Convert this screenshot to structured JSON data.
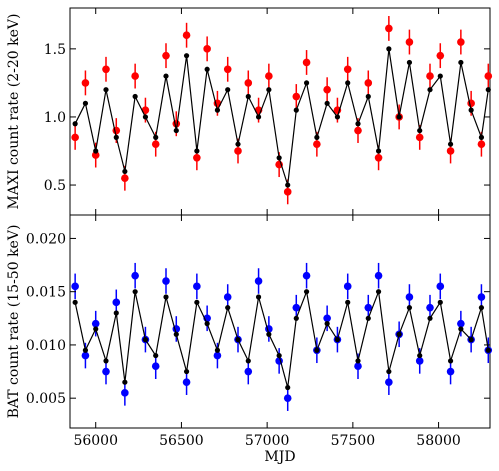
{
  "chart_data": [
    {
      "type": "scatter",
      "panel": "top",
      "ylabel": "MAXI count rate (2-20 keV)",
      "xlabel": "",
      "xlim": [
        55850,
        58300
      ],
      "ylim": [
        0.28,
        1.8
      ],
      "yticks": [
        0.5,
        1.0,
        1.5
      ],
      "ytick_labels": [
        "0.5",
        "1.0",
        "1.5"
      ],
      "colors": {
        "data": "#ff0000",
        "model": "#000000"
      },
      "series": [
        {
          "style": "points-with-errorbars",
          "x": [
            55880,
            55940,
            56000,
            56060,
            56120,
            56170,
            56230,
            56290,
            56350,
            56410,
            56470,
            56530,
            56590,
            56650,
            56710,
            56770,
            56830,
            56890,
            56950,
            57010,
            57070,
            57120,
            57170,
            57230,
            57290,
            57350,
            57410,
            57470,
            57530,
            57590,
            57650,
            57710,
            57770,
            57830,
            57890,
            57950,
            58010,
            58070,
            58130,
            58190,
            58250,
            58290
          ],
          "y": [
            0.85,
            1.25,
            0.72,
            1.35,
            0.9,
            0.55,
            1.3,
            1.05,
            0.8,
            1.45,
            0.95,
            1.6,
            0.7,
            1.5,
            1.1,
            1.35,
            0.75,
            1.25,
            1.05,
            1.3,
            0.65,
            0.45,
            1.15,
            1.4,
            0.8,
            1.2,
            1.05,
            1.35,
            0.9,
            1.25,
            0.7,
            1.65,
            1.0,
            1.55,
            0.85,
            1.3,
            1.45,
            0.75,
            1.55,
            1.1,
            0.8,
            1.3
          ]
        },
        {
          "style": "points",
          "x": [
            55880,
            55940,
            56000,
            56060,
            56120,
            56170,
            56230,
            56290,
            56350,
            56410,
            56470,
            56530,
            56590,
            56650,
            56710,
            56770,
            56830,
            56890,
            56950,
            57010,
            57070,
            57120,
            57170,
            57230,
            57290,
            57350,
            57410,
            57470,
            57530,
            57590,
            57650,
            57710,
            57770,
            57830,
            57890,
            57950,
            58010,
            58070,
            58130,
            58190,
            58250,
            58290
          ],
          "y": [
            0.95,
            1.1,
            0.75,
            1.2,
            0.85,
            0.6,
            1.15,
            1.0,
            0.85,
            1.3,
            0.9,
            1.45,
            0.75,
            1.35,
            1.05,
            1.2,
            0.8,
            1.15,
            1.0,
            1.2,
            0.7,
            0.5,
            1.05,
            1.25,
            0.85,
            1.1,
            1.0,
            1.25,
            0.95,
            1.15,
            0.75,
            1.5,
            1.0,
            1.4,
            0.9,
            1.2,
            1.3,
            0.8,
            1.4,
            1.05,
            0.85,
            1.2
          ]
        }
      ]
    },
    {
      "type": "scatter",
      "panel": "bottom",
      "ylabel": "BAT count rate (15-50 keV)",
      "xlabel": "MJD",
      "xlim": [
        55850,
        58300
      ],
      "ylim": [
        0.0022,
        0.0222
      ],
      "yticks": [
        0.005,
        0.01,
        0.015,
        0.02
      ],
      "ytick_labels": [
        "0.005",
        "0.010",
        "0.015",
        "0.020"
      ],
      "xticks": [
        56000,
        56500,
        57000,
        57500,
        58000
      ],
      "xtick_labels": [
        "56000",
        "56500",
        "57000",
        "57500",
        "58000"
      ],
      "colors": {
        "data": "#0000ff",
        "model": "#000000"
      },
      "series": [
        {
          "style": "points-with-errorbars",
          "x": [
            55880,
            55940,
            56000,
            56060,
            56120,
            56170,
            56230,
            56290,
            56350,
            56410,
            56470,
            56530,
            56590,
            56650,
            56710,
            56770,
            56830,
            56890,
            56950,
            57010,
            57070,
            57120,
            57170,
            57230,
            57290,
            57350,
            57410,
            57470,
            57530,
            57590,
            57650,
            57710,
            57770,
            57830,
            57890,
            57950,
            58010,
            58070,
            58130,
            58190,
            58250,
            58290
          ],
          "y": [
            0.0155,
            0.009,
            0.012,
            0.0075,
            0.014,
            0.0055,
            0.0165,
            0.0105,
            0.008,
            0.016,
            0.0115,
            0.0065,
            0.0155,
            0.0125,
            0.009,
            0.0145,
            0.0105,
            0.0075,
            0.016,
            0.0115,
            0.0085,
            0.005,
            0.0135,
            0.0165,
            0.0095,
            0.0125,
            0.0105,
            0.0155,
            0.008,
            0.0135,
            0.0165,
            0.0065,
            0.011,
            0.0145,
            0.0085,
            0.0135,
            0.0155,
            0.0075,
            0.012,
            0.0105,
            0.0145,
            0.0095
          ]
        },
        {
          "style": "points",
          "x": [
            55880,
            55940,
            56000,
            56060,
            56120,
            56170,
            56230,
            56290,
            56350,
            56410,
            56470,
            56530,
            56590,
            56650,
            56710,
            56770,
            56830,
            56890,
            56950,
            57010,
            57070,
            57120,
            57170,
            57230,
            57290,
            57350,
            57410,
            57470,
            57530,
            57590,
            57650,
            57710,
            57770,
            57830,
            57890,
            57950,
            58010,
            58070,
            58130,
            58190,
            58250,
            58290
          ],
          "y": [
            0.014,
            0.0095,
            0.0115,
            0.0085,
            0.013,
            0.0065,
            0.015,
            0.0105,
            0.009,
            0.0145,
            0.011,
            0.0075,
            0.014,
            0.012,
            0.0095,
            0.0135,
            0.0105,
            0.0085,
            0.0145,
            0.011,
            0.009,
            0.006,
            0.0125,
            0.015,
            0.0095,
            0.012,
            0.0105,
            0.014,
            0.0085,
            0.0125,
            0.015,
            0.0075,
            0.011,
            0.0135,
            0.009,
            0.0125,
            0.014,
            0.0085,
            0.0115,
            0.0105,
            0.0135,
            0.0095
          ]
        }
      ]
    }
  ]
}
